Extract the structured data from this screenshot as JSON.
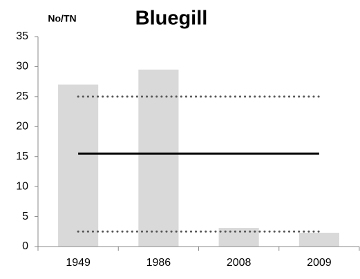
{
  "chart_data": {
    "type": "bar",
    "title": "Bluegill",
    "y_label": "No/TN",
    "categories": [
      "1949",
      "1986",
      "2008",
      "2009"
    ],
    "values": [
      27,
      29.5,
      3.1,
      2.3
    ],
    "color": "#d9d9d9",
    "ylim": [
      0,
      35
    ],
    "yticks": [
      0,
      5,
      10,
      15,
      20,
      25,
      30,
      35
    ],
    "grid": false,
    "reference_lines": [
      {
        "value": 25,
        "style": "dotted",
        "color": "#555555"
      },
      {
        "value": 15.5,
        "style": "solid",
        "color": "#000000"
      },
      {
        "value": 2.5,
        "style": "dotted",
        "color": "#555555"
      }
    ]
  }
}
